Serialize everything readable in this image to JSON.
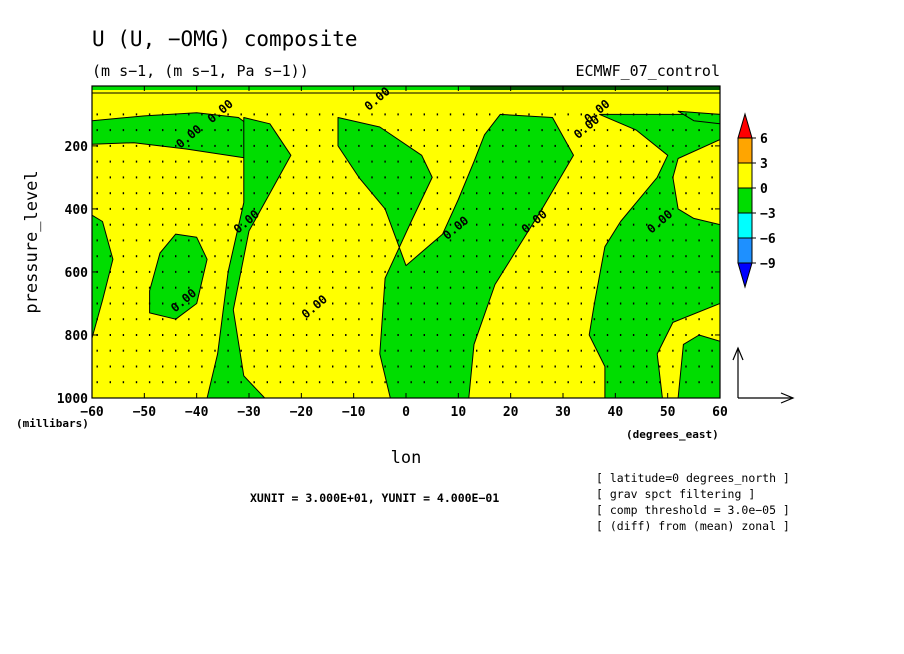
{
  "title": "U (U, −OMG) composite",
  "subtitle": "(m s−1, (m s−1, Pa s−1))",
  "dataset": "ECMWF_07_control",
  "chart_data": {
    "type": "contour",
    "xlabel": "lon",
    "ylabel": "pressure_level",
    "x_unit_label": "(degrees_east)",
    "y_unit_label": "(millibars)",
    "xlim": [
      -60,
      60
    ],
    "ylim": [
      1000,
      10
    ],
    "x_ticks": [
      -60,
      -50,
      -40,
      -30,
      -20,
      -10,
      0,
      10,
      20,
      30,
      40,
      50,
      60
    ],
    "x_tick_labels": [
      "−60",
      "−50",
      "−40",
      "−30",
      "−20",
      "−10",
      "0",
      "10",
      "20",
      "30",
      "40",
      "50",
      "60"
    ],
    "y_ticks": [
      200,
      400,
      600,
      800,
      1000
    ],
    "y_tick_labels": [
      "200",
      "400",
      "600",
      "800",
      "1000"
    ],
    "contour_label": "0.00",
    "colorbar": {
      "levels": [
        "6",
        "3",
        "0",
        "−3",
        "−6",
        "−9"
      ],
      "colors": [
        "#ff0000",
        "#ffa500",
        "#ffff00",
        "#00dd00",
        "#00ffff",
        "#1e90ff",
        "#0000ff"
      ]
    },
    "negative_regions": [
      {
        "name": "west-low",
        "points": [
          [
            -60,
            810
          ],
          [
            -58,
            690
          ],
          [
            -56,
            560
          ],
          [
            -58,
            440
          ],
          [
            -60,
            420
          ]
        ]
      },
      {
        "name": "west-top",
        "points": [
          [
            -60,
            120
          ],
          [
            -50,
            105
          ],
          [
            -40,
            95
          ],
          [
            -32,
            110
          ],
          [
            -28,
            160
          ],
          [
            -30,
            240
          ],
          [
            -42,
            210
          ],
          [
            -52,
            190
          ],
          [
            -60,
            195
          ]
        ]
      },
      {
        "name": "west-blob",
        "points": [
          [
            -49,
            660
          ],
          [
            -47,
            540
          ],
          [
            -44,
            480
          ],
          [
            -40,
            490
          ],
          [
            -38,
            560
          ],
          [
            -40,
            700
          ],
          [
            -44,
            750
          ],
          [
            -49,
            730
          ]
        ]
      },
      {
        "name": "band-1",
        "points": [
          [
            -31,
            110
          ],
          [
            -26,
            130
          ],
          [
            -22,
            230
          ],
          [
            -26,
            350
          ],
          [
            -30,
            470
          ],
          [
            -33,
            720
          ],
          [
            -31,
            930
          ],
          [
            -27,
            1000
          ],
          [
            -38,
            1000
          ],
          [
            -36,
            860
          ],
          [
            -34,
            600
          ],
          [
            -31,
            380
          ]
        ]
      },
      {
        "name": "band-2",
        "points": [
          [
            -13,
            110
          ],
          [
            -5,
            140
          ],
          [
            3,
            230
          ],
          [
            5,
            300
          ],
          [
            1,
            440
          ],
          [
            -4,
            620
          ],
          [
            -5,
            860
          ],
          [
            -3,
            1000
          ],
          [
            12,
            1000
          ],
          [
            13,
            830
          ],
          [
            17,
            640
          ],
          [
            26,
            400
          ],
          [
            32,
            230
          ],
          [
            28,
            110
          ],
          [
            18,
            100
          ],
          [
            15,
            165
          ],
          [
            13,
            250
          ],
          [
            10,
            370
          ],
          [
            7,
            480
          ],
          [
            0,
            580
          ],
          [
            -4,
            400
          ],
          [
            -9,
            300
          ],
          [
            -13,
            200
          ]
        ]
      },
      {
        "name": "band-3",
        "points": [
          [
            37,
            100
          ],
          [
            44,
            150
          ],
          [
            50,
            230
          ],
          [
            48,
            300
          ],
          [
            45,
            360
          ],
          [
            41,
            440
          ],
          [
            38,
            520
          ],
          [
            36,
            700
          ],
          [
            35,
            800
          ],
          [
            38,
            900
          ],
          [
            38,
            1000
          ],
          [
            49,
            1000
          ],
          [
            48,
            860
          ],
          [
            51,
            760
          ],
          [
            60,
            700
          ],
          [
            60,
            450
          ],
          [
            55,
            430
          ],
          [
            52,
            400
          ],
          [
            51,
            300
          ],
          [
            52,
            240
          ],
          [
            60,
            180
          ],
          [
            60,
            100
          ]
        ]
      },
      {
        "name": "east-top",
        "points": [
          [
            52,
            90
          ],
          [
            60,
            100
          ],
          [
            60,
            130
          ],
          [
            55,
            120
          ]
        ]
      },
      {
        "name": "east-low",
        "points": [
          [
            60,
            820
          ],
          [
            56,
            800
          ],
          [
            53,
            830
          ],
          [
            52,
            1000
          ],
          [
            60,
            1000
          ]
        ]
      }
    ],
    "contour_label_positions": [
      {
        "lon": -35,
        "p": 100
      },
      {
        "lon": -41,
        "p": 180
      },
      {
        "lon": -30,
        "p": 450
      },
      {
        "lon": -42,
        "p": 700
      },
      {
        "lon": -17,
        "p": 720
      },
      {
        "lon": 10,
        "p": 470
      },
      {
        "lon": 25,
        "p": 450
      },
      {
        "lon": 37,
        "p": 100
      },
      {
        "lon": 35,
        "p": 150
      },
      {
        "lon": 49,
        "p": 450
      },
      {
        "lon": -5,
        "p": 60
      }
    ]
  },
  "vector_scale": {
    "xunit_label": "XUNIT = 3.000E+01, YUNIT = 4.000E−01"
  },
  "notes": [
    "[ latitude=0 degrees_north ]",
    "[ grav spct filtering ]",
    "[ comp threshold = 3.0e−05 ]",
    "[ (diff) from (mean) zonal ]"
  ]
}
